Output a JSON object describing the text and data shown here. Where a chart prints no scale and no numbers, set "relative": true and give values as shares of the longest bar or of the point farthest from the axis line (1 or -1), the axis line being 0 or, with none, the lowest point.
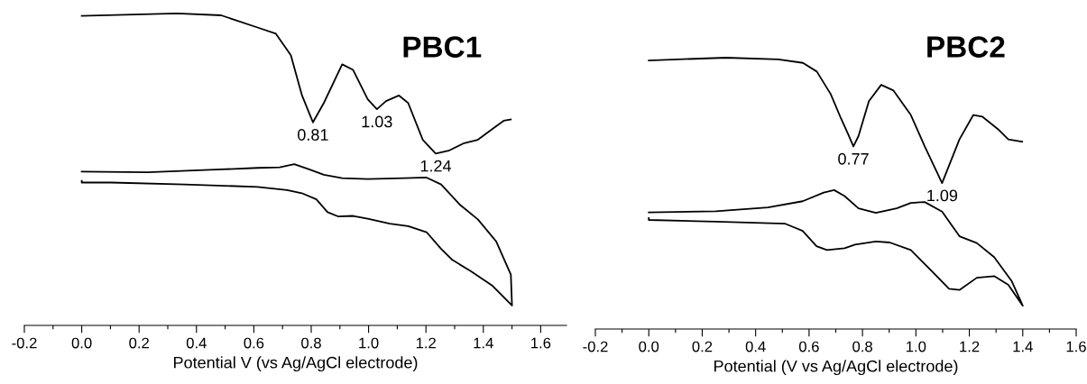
{
  "chart_data": [
    {
      "type": "line",
      "title": "PBC1",
      "xlabel": "Potential V (vs Ag/AgCl electrode)",
      "relative": true,
      "tick_labels": "x",
      "xlim": [
        -0.2,
        1.69
      ],
      "xticks": [
        {
          "value": -0.2,
          "label": "-0.2"
        },
        {
          "value": -0.1,
          "label": null
        },
        {
          "value": 0.0,
          "label": "0.0"
        },
        {
          "value": 0.1,
          "label": null
        },
        {
          "value": 0.2,
          "label": "0.2"
        },
        {
          "value": 0.3,
          "label": null
        },
        {
          "value": 0.4,
          "label": "0.4"
        },
        {
          "value": 0.5,
          "label": null
        },
        {
          "value": 0.6,
          "label": "0.6"
        },
        {
          "value": 0.7,
          "label": null
        },
        {
          "value": 0.8,
          "label": "0.8"
        },
        {
          "value": 0.9,
          "label": null
        },
        {
          "value": 1.0,
          "label": "1.0"
        },
        {
          "value": 1.1,
          "label": null
        },
        {
          "value": 1.2,
          "label": "1.2"
        },
        {
          "value": 1.3,
          "label": null
        },
        {
          "value": 1.4,
          "label": "1.4"
        },
        {
          "value": 1.5,
          "label": null
        },
        {
          "value": 1.6,
          "label": "1.6"
        }
      ],
      "series": [
        {
          "color": "#000000",
          "x": [
            0.0,
            0.332,
            0.486,
            0.613,
            0.677,
            0.729,
            0.768,
            0.806,
            0.844,
            0.908,
            0.946,
            0.997,
            1.029,
            1.061,
            1.106,
            1.138,
            1.189,
            1.234,
            1.279,
            1.33,
            1.381,
            1.432,
            1.471,
            1.496
          ],
          "values": [
            0.992,
            1.0,
            0.994,
            0.955,
            0.935,
            0.866,
            0.737,
            0.651,
            0.713,
            0.837,
            0.819,
            0.725,
            0.693,
            0.719,
            0.737,
            0.713,
            0.595,
            0.551,
            0.56,
            0.583,
            0.595,
            0.63,
            0.656,
            0.66
          ]
        },
        {
          "color": "#000000",
          "x": [
            0.0,
            0.23,
            0.486,
            0.613,
            0.69,
            0.741,
            0.793,
            0.844,
            0.908,
            0.997,
            1.125,
            1.202,
            1.253,
            1.317,
            1.381,
            1.445,
            1.496,
            1.5,
            1.432,
            1.356,
            1.292,
            1.253,
            1.202,
            1.138,
            1.074,
            0.997,
            0.946,
            0.895,
            0.857,
            0.818,
            0.767,
            0.716,
            0.613,
            0.358,
            0.102,
            0.0,
            0.0
          ],
          "values": [
            0.493,
            0.491,
            0.5,
            0.505,
            0.507,
            0.517,
            0.5,
            0.483,
            0.472,
            0.469,
            0.472,
            0.474,
            0.452,
            0.388,
            0.34,
            0.269,
            0.163,
            0.064,
            0.127,
            0.174,
            0.21,
            0.245,
            0.299,
            0.318,
            0.326,
            0.342,
            0.351,
            0.349,
            0.363,
            0.404,
            0.424,
            0.434,
            0.444,
            0.452,
            0.458,
            0.458,
            0.463
          ]
        }
      ],
      "annotations": [
        {
          "text": "0.81",
          "x": 0.806,
          "y": 0.651
        },
        {
          "text": "1.03",
          "x": 1.029,
          "y": 0.693
        },
        {
          "text": "1.24",
          "x": 1.234,
          "y": 0.551
        }
      ]
    },
    {
      "type": "line",
      "title": "PBC2",
      "xlabel": "Potential (V vs Ag/AgCl electrode)",
      "relative": true,
      "tick_labels": "x",
      "xlim": [
        -0.2,
        1.6
      ],
      "xticks": [
        {
          "value": -0.2,
          "label": "-0.2"
        },
        {
          "value": -0.1,
          "label": null
        },
        {
          "value": 0.0,
          "label": "0.0"
        },
        {
          "value": 0.1,
          "label": null
        },
        {
          "value": 0.2,
          "label": "0.2"
        },
        {
          "value": 0.3,
          "label": null
        },
        {
          "value": 0.4,
          "label": "0.4"
        },
        {
          "value": 0.5,
          "label": null
        },
        {
          "value": 0.6,
          "label": "0.6"
        },
        {
          "value": 0.7,
          "label": null
        },
        {
          "value": 0.8,
          "label": "0.8"
        },
        {
          "value": 0.9,
          "label": null
        },
        {
          "value": 1.0,
          "label": "1.0"
        },
        {
          "value": 1.1,
          "label": null
        },
        {
          "value": 1.2,
          "label": "1.2"
        },
        {
          "value": 1.3,
          "label": null
        },
        {
          "value": 1.4,
          "label": "1.4"
        },
        {
          "value": 1.5,
          "label": null
        },
        {
          "value": 1.6,
          "label": "1.6"
        }
      ],
      "series": [
        {
          "color": "#000000",
          "x": [
            0.0,
            0.289,
            0.485,
            0.577,
            0.629,
            0.681,
            0.72,
            0.746,
            0.766,
            0.785,
            0.824,
            0.87,
            0.916,
            0.981,
            1.033,
            1.098,
            1.163,
            1.215,
            1.248,
            1.307,
            1.346,
            1.398
          ],
          "values": [
            0.99,
            1.0,
            0.994,
            0.981,
            0.949,
            0.866,
            0.775,
            0.719,
            0.673,
            0.711,
            0.84,
            0.9,
            0.879,
            0.789,
            0.673,
            0.538,
            0.699,
            0.789,
            0.783,
            0.737,
            0.699,
            0.69
          ]
        },
        {
          "color": "#000000",
          "x": [
            0.0,
            0.251,
            0.446,
            0.576,
            0.655,
            0.694,
            0.733,
            0.785,
            0.85,
            0.928,
            0.981,
            1.033,
            1.098,
            1.163,
            1.228,
            1.293,
            1.359,
            1.4,
            1.346,
            1.293,
            1.228,
            1.163,
            1.124,
            1.059,
            0.981,
            0.902,
            0.85,
            0.772,
            0.733,
            0.667,
            0.628,
            0.576,
            0.511,
            0.251,
            0.0,
            0.0
          ],
          "values": [
            0.43,
            0.434,
            0.448,
            0.471,
            0.503,
            0.512,
            0.49,
            0.445,
            0.428,
            0.445,
            0.465,
            0.468,
            0.433,
            0.342,
            0.317,
            0.265,
            0.176,
            0.086,
            0.163,
            0.195,
            0.189,
            0.144,
            0.148,
            0.214,
            0.291,
            0.319,
            0.323,
            0.311,
            0.298,
            0.291,
            0.305,
            0.362,
            0.388,
            0.396,
            0.402,
            0.409
          ]
        }
      ],
      "annotations": [
        {
          "text": "0.77",
          "x": 0.766,
          "y": 0.673
        },
        {
          "text": "1.09",
          "x": 1.098,
          "y": 0.538
        }
      ]
    }
  ]
}
